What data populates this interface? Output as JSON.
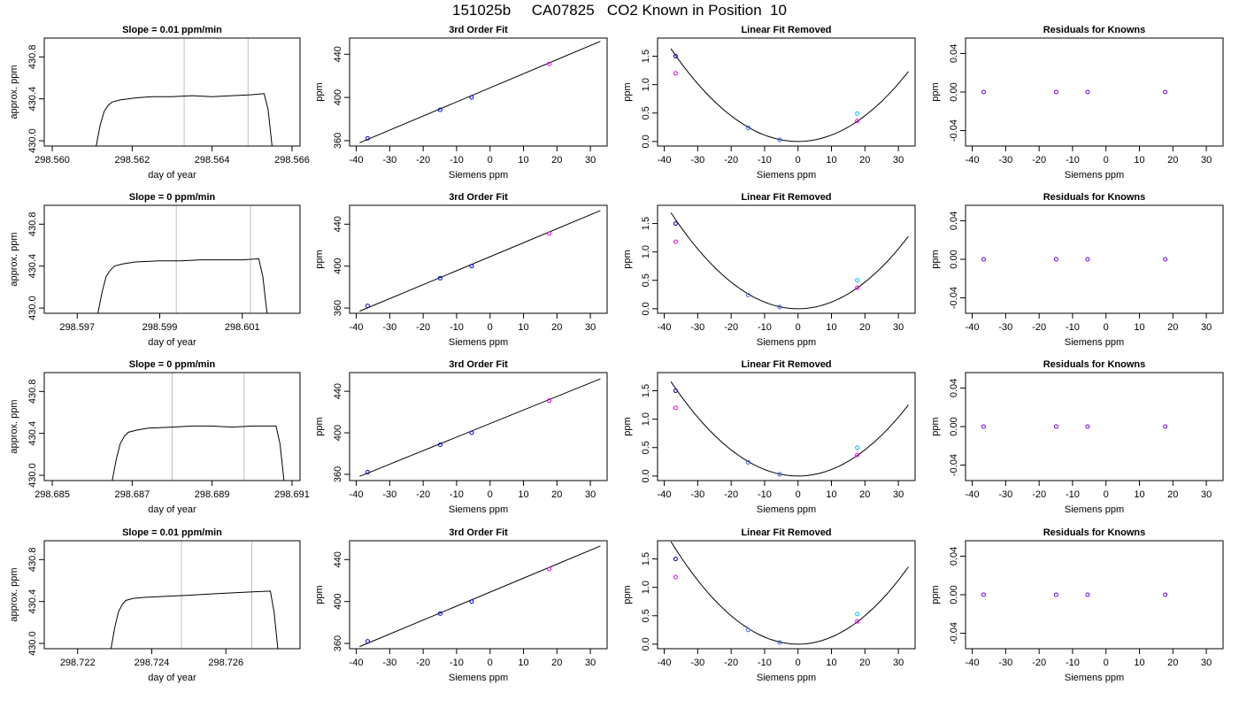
{
  "page_title": "151025b     CA07825   CO2 Known in Position  10",
  "chart_data": [
    {
      "type": "line",
      "title": "Slope =  0.01  ppm/min",
      "xlabel": "day of year",
      "ylabel": "approx. ppm",
      "xlim": [
        298.5598,
        298.5662
      ],
      "ylim": [
        429.95,
        430.98
      ],
      "xticks": [
        298.56,
        298.562,
        298.564,
        298.566
      ],
      "xtick_labels": [
        "298.560",
        "298.562",
        "298.564",
        "298.566"
      ],
      "yticks": [
        430.0,
        430.4,
        430.8
      ],
      "ytick_labels": [
        "430.0",
        "430.4",
        "430.8"
      ],
      "vlines": [
        298.5633,
        298.5649
      ],
      "series": [
        {
          "x": [
            298.5611,
            298.5612,
            298.5613,
            298.5614,
            298.5615,
            298.5617,
            298.5619,
            298.5621,
            298.5625,
            298.563,
            298.5635,
            298.564,
            298.5645,
            298.565,
            298.5653,
            298.5654,
            298.5655
          ],
          "y": [
            429.95,
            430.15,
            430.28,
            430.34,
            430.37,
            430.39,
            430.4,
            430.41,
            430.42,
            430.42,
            430.43,
            430.42,
            430.43,
            430.44,
            430.45,
            430.3,
            429.95
          ]
        }
      ]
    },
    {
      "type": "scatter",
      "title": "3rd Order Fit",
      "xlabel": "Siemens ppm",
      "ylabel": "ppm",
      "xlim": [
        -42,
        35
      ],
      "ylim": [
        355,
        455
      ],
      "xticks": [
        -40,
        -30,
        -20,
        -10,
        0,
        10,
        20,
        30
      ],
      "xtick_labels": [
        "-40",
        "-30",
        "-20",
        "-10",
        "0",
        "10",
        "20",
        "30"
      ],
      "yticks": [
        360,
        400,
        440
      ],
      "ytick_labels": [
        "360",
        "400",
        "440"
      ],
      "fit_line": [
        [
          -39,
          358
        ],
        [
          33,
          452
        ]
      ],
      "points": [
        {
          "x": -36.6,
          "y": 362.1
        },
        {
          "x": -14.9,
          "y": 388.5
        },
        {
          "x": -5.5,
          "y": 400.0
        },
        {
          "x": 17.7,
          "y": 431.0
        }
      ]
    },
    {
      "type": "scatter",
      "title": "Linear Fit Removed",
      "xlabel": "Siemens ppm",
      "ylabel": "ppm",
      "xlim": [
        -42,
        35
      ],
      "ylim": [
        -0.08,
        1.82
      ],
      "xticks": [
        -40,
        -30,
        -20,
        -10,
        0,
        10,
        20,
        30
      ],
      "xtick_labels": [
        "-40",
        "-30",
        "-20",
        "-10",
        "0",
        "10",
        "20",
        "30"
      ],
      "yticks": [
        0.0,
        0.5,
        1.0,
        1.5
      ],
      "ytick_labels": [
        "0.0",
        "0.5",
        "1.0",
        "1.5"
      ],
      "curve_coeffs": [
        0,
        0,
        0.00113
      ],
      "points": [
        {
          "x": -36.6,
          "y": 1.5
        },
        {
          "x": -36.6,
          "y": 1.2
        },
        {
          "x": -14.9,
          "y": 0.24
        },
        {
          "x": -5.5,
          "y": 0.03
        },
        {
          "x": 17.7,
          "y": 0.49
        },
        {
          "x": 17.7,
          "y": 0.36
        }
      ]
    },
    {
      "type": "scatter",
      "title": "Residuals for Knowns",
      "xlabel": "Siemens ppm",
      "ylabel": "ppm",
      "xlim": [
        -42,
        35
      ],
      "ylim": [
        -0.056,
        0.056
      ],
      "xticks": [
        -40,
        -30,
        -20,
        -10,
        0,
        10,
        20,
        30
      ],
      "xtick_labels": [
        "-40",
        "-30",
        "-20",
        "-10",
        "0",
        "10",
        "20",
        "30"
      ],
      "yticks": [
        -0.04,
        0.0,
        0.04
      ],
      "ytick_labels": [
        "-0.04",
        "0.00",
        "0.04"
      ],
      "points": [
        {
          "x": -36.6,
          "y": 0
        },
        {
          "x": -14.9,
          "y": 0
        },
        {
          "x": -5.5,
          "y": 0
        },
        {
          "x": 17.7,
          "y": 0
        }
      ]
    },
    {
      "type": "line",
      "title": "Slope =  0  ppm/min",
      "xlabel": "day of year",
      "ylabel": "approx. ppm",
      "xlim": [
        298.5962,
        298.6024
      ],
      "ylim": [
        429.95,
        430.98
      ],
      "xticks": [
        298.597,
        298.599,
        298.601
      ],
      "xtick_labels": [
        "298.597",
        "298.599",
        "298.601"
      ],
      "vlines": [
        298.5994,
        298.6012
      ],
      "yticks": [
        430.0,
        430.4,
        430.8
      ],
      "ytick_labels": [
        "430.0",
        "430.4",
        "430.8"
      ],
      "series": [
        {
          "x": [
            298.5975,
            298.5976,
            298.5977,
            298.5978,
            298.5979,
            298.5981,
            298.5984,
            298.599,
            298.5995,
            298.6,
            298.6005,
            298.601,
            298.6014,
            298.6015,
            298.6016
          ],
          "y": [
            429.95,
            430.15,
            430.3,
            430.36,
            430.4,
            430.42,
            430.44,
            430.45,
            430.45,
            430.46,
            430.46,
            430.46,
            430.47,
            430.3,
            429.95
          ]
        }
      ]
    },
    {
      "type": "scatter",
      "title": "3rd Order Fit",
      "xlabel": "Siemens ppm",
      "ylabel": "ppm",
      "xlim": [
        -42,
        35
      ],
      "ylim": [
        355,
        458
      ],
      "xticks": [
        -40,
        -30,
        -20,
        -10,
        0,
        10,
        20,
        30
      ],
      "xtick_labels": [
        "-40",
        "-30",
        "-20",
        "-10",
        "0",
        "10",
        "20",
        "30"
      ],
      "yticks": [
        360,
        400,
        440
      ],
      "ytick_labels": [
        "360",
        "400",
        "440"
      ],
      "fit_line": [
        [
          -39,
          357
        ],
        [
          33,
          453
        ]
      ],
      "points": [
        {
          "x": -36.6,
          "y": 362.1
        },
        {
          "x": -14.9,
          "y": 388.5
        },
        {
          "x": -5.5,
          "y": 400.0
        },
        {
          "x": 17.7,
          "y": 431.0
        }
      ]
    },
    {
      "type": "scatter",
      "title": "Linear Fit Removed",
      "xlabel": "Siemens ppm",
      "ylabel": "ppm",
      "xlim": [
        -42,
        35
      ],
      "ylim": [
        -0.08,
        1.82
      ],
      "xticks": [
        -40,
        -30,
        -20,
        -10,
        0,
        10,
        20,
        30
      ],
      "xtick_labels": [
        "-40",
        "-30",
        "-20",
        "-10",
        "0",
        "10",
        "20",
        "30"
      ],
      "yticks": [
        0.0,
        0.5,
        1.0,
        1.5
      ],
      "ytick_labels": [
        "0.0",
        "0.5",
        "1.0",
        "1.5"
      ],
      "curve_coeffs": [
        0,
        0,
        0.00117
      ],
      "points": [
        {
          "x": -36.6,
          "y": 1.5
        },
        {
          "x": -36.6,
          "y": 1.18
        },
        {
          "x": -14.9,
          "y": 0.24
        },
        {
          "x": -5.5,
          "y": 0.03
        },
        {
          "x": 17.7,
          "y": 0.5
        },
        {
          "x": 17.7,
          "y": 0.37
        }
      ]
    },
    {
      "type": "scatter",
      "title": "Residuals for Knowns",
      "xlabel": "Siemens ppm",
      "ylabel": "ppm",
      "xlim": [
        -42,
        35
      ],
      "ylim": [
        -0.056,
        0.056
      ],
      "xticks": [
        -40,
        -30,
        -20,
        -10,
        0,
        10,
        20,
        30
      ],
      "xtick_labels": [
        "-40",
        "-30",
        "-20",
        "-10",
        "0",
        "10",
        "20",
        "30"
      ],
      "yticks": [
        -0.04,
        0.0,
        0.04
      ],
      "ytick_labels": [
        "-0.04",
        "0.00",
        "0.04"
      ],
      "points": [
        {
          "x": -36.6,
          "y": 0
        },
        {
          "x": -14.9,
          "y": 0
        },
        {
          "x": -5.5,
          "y": 0
        },
        {
          "x": 17.7,
          "y": 0
        }
      ]
    },
    {
      "type": "line",
      "title": "Slope =  0  ppm/min",
      "xlabel": "day of year",
      "ylabel": "approx. ppm",
      "xlim": [
        298.6848,
        298.6912
      ],
      "ylim": [
        429.95,
        430.98
      ],
      "xticks": [
        298.685,
        298.687,
        298.689,
        298.691
      ],
      "xtick_labels": [
        "298.685",
        "298.687",
        "298.689",
        "298.691"
      ],
      "vlines": [
        298.688,
        298.6898
      ],
      "yticks": [
        430.0,
        430.4,
        430.8
      ],
      "ytick_labels": [
        "430.0",
        "430.4",
        "430.8"
      ],
      "series": [
        {
          "x": [
            298.6865,
            298.6866,
            298.6867,
            298.6868,
            298.6869,
            298.6871,
            298.6874,
            298.688,
            298.6885,
            298.689,
            298.6895,
            298.69,
            298.6906,
            298.6907,
            298.6908
          ],
          "y": [
            429.95,
            430.15,
            430.3,
            430.37,
            430.41,
            430.43,
            430.45,
            430.46,
            430.47,
            430.47,
            430.46,
            430.47,
            430.47,
            430.3,
            429.95
          ]
        }
      ]
    },
    {
      "type": "scatter",
      "title": "3rd Order Fit",
      "xlabel": "Siemens ppm",
      "ylabel": "ppm",
      "xlim": [
        -42,
        35
      ],
      "ylim": [
        354,
        458
      ],
      "xticks": [
        -40,
        -30,
        -20,
        -10,
        0,
        10,
        20,
        30
      ],
      "xtick_labels": [
        "-40",
        "-30",
        "-20",
        "-10",
        "0",
        "10",
        "20",
        "30"
      ],
      "yticks": [
        360,
        400,
        440
      ],
      "ytick_labels": [
        "360",
        "400",
        "440"
      ],
      "fit_line": [
        [
          -39,
          358
        ],
        [
          33,
          452
        ]
      ],
      "points": [
        {
          "x": -36.6,
          "y": 362.1
        },
        {
          "x": -14.9,
          "y": 388.5
        },
        {
          "x": -5.5,
          "y": 400.0
        },
        {
          "x": 17.7,
          "y": 431.0
        }
      ]
    },
    {
      "type": "scatter",
      "title": "Linear Fit Removed",
      "xlabel": "Siemens ppm",
      "ylabel": "ppm",
      "xlim": [
        -42,
        35
      ],
      "ylim": [
        -0.08,
        1.82
      ],
      "xticks": [
        -40,
        -30,
        -20,
        -10,
        0,
        10,
        20,
        30
      ],
      "xtick_labels": [
        "-40",
        "-30",
        "-20",
        "-10",
        "0",
        "10",
        "20",
        "30"
      ],
      "yticks": [
        0.0,
        0.5,
        1.0,
        1.5
      ],
      "ytick_labels": [
        "0.0",
        "0.5",
        "1.0",
        "1.5"
      ],
      "curve_coeffs": [
        0,
        0,
        0.00115
      ],
      "points": [
        {
          "x": -36.6,
          "y": 1.5
        },
        {
          "x": -36.6,
          "y": 1.2
        },
        {
          "x": -14.9,
          "y": 0.24
        },
        {
          "x": -5.5,
          "y": 0.03
        },
        {
          "x": 17.7,
          "y": 0.5
        },
        {
          "x": 17.7,
          "y": 0.37
        }
      ]
    },
    {
      "type": "scatter",
      "title": "Residuals for Knowns",
      "xlabel": "Siemens ppm",
      "ylabel": "ppm",
      "xlim": [
        -42,
        35
      ],
      "ylim": [
        -0.056,
        0.056
      ],
      "xticks": [
        -40,
        -30,
        -20,
        -10,
        0,
        10,
        20,
        30
      ],
      "xtick_labels": [
        "-40",
        "-30",
        "-20",
        "-10",
        "0",
        "10",
        "20",
        "30"
      ],
      "yticks": [
        -0.04,
        0.0,
        0.04
      ],
      "ytick_labels": [
        "-0.04",
        "0.00",
        "0.04"
      ],
      "points": [
        {
          "x": -36.6,
          "y": 0
        },
        {
          "x": -14.9,
          "y": 0
        },
        {
          "x": -5.5,
          "y": 0
        },
        {
          "x": 17.7,
          "y": 0
        }
      ]
    },
    {
      "type": "line",
      "title": "Slope =  0.01  ppm/min",
      "xlabel": "day of year",
      "ylabel": "approx. ppm",
      "xlim": [
        298.7211,
        298.728
      ],
      "ylim": [
        429.95,
        430.98
      ],
      "xticks": [
        298.722,
        298.724,
        298.726
      ],
      "xtick_labels": [
        "298.722",
        "298.724",
        "298.726"
      ],
      "vlines": [
        298.7248,
        298.7267
      ],
      "yticks": [
        430.0,
        430.4,
        430.8
      ],
      "ytick_labels": [
        "430.0",
        "430.4",
        "430.8"
      ],
      "series": [
        {
          "x": [
            298.7229,
            298.723,
            298.7231,
            298.7232,
            298.7233,
            298.7235,
            298.7238,
            298.7244,
            298.725,
            298.7255,
            298.726,
            298.7266,
            298.7272,
            298.7273,
            298.7274
          ],
          "y": [
            429.95,
            430.15,
            430.3,
            430.37,
            430.41,
            430.43,
            430.44,
            430.45,
            430.46,
            430.47,
            430.48,
            430.49,
            430.5,
            430.3,
            429.95
          ]
        }
      ]
    },
    {
      "type": "scatter",
      "title": "3rd Order Fit",
      "xlabel": "Siemens ppm",
      "ylabel": "ppm",
      "xlim": [
        -42,
        35
      ],
      "ylim": [
        355,
        458
      ],
      "xticks": [
        -40,
        -30,
        -20,
        -10,
        0,
        10,
        20,
        30
      ],
      "xtick_labels": [
        "-40",
        "-30",
        "-20",
        "-10",
        "0",
        "10",
        "20",
        "30"
      ],
      "yticks": [
        360,
        400,
        440
      ],
      "ytick_labels": [
        "360",
        "400",
        "440"
      ],
      "fit_line": [
        [
          -39,
          357
        ],
        [
          33,
          453
        ]
      ],
      "points": [
        {
          "x": -36.6,
          "y": 362.1
        },
        {
          "x": -14.9,
          "y": 388.5
        },
        {
          "x": -5.5,
          "y": 400.0
        },
        {
          "x": 17.7,
          "y": 431.0
        }
      ]
    },
    {
      "type": "scatter",
      "title": "Linear Fit Removed",
      "xlabel": "Siemens ppm",
      "ylabel": "ppm",
      "xlim": [
        -42,
        35
      ],
      "ylim": [
        -0.08,
        1.82
      ],
      "xticks": [
        -40,
        -30,
        -20,
        -10,
        0,
        10,
        20,
        30
      ],
      "xtick_labels": [
        "-40",
        "-30",
        "-20",
        "-10",
        "0",
        "10",
        "20",
        "30"
      ],
      "yticks": [
        0.0,
        0.5,
        1.0,
        1.5
      ],
      "ytick_labels": [
        "0.0",
        "0.5",
        "1.0",
        "1.5"
      ],
      "curve_coeffs": [
        0,
        0,
        0.00125
      ],
      "points": [
        {
          "x": -36.6,
          "y": 1.5
        },
        {
          "x": -36.6,
          "y": 1.18
        },
        {
          "x": -14.9,
          "y": 0.25
        },
        {
          "x": -5.5,
          "y": 0.03
        },
        {
          "x": 17.7,
          "y": 0.53
        },
        {
          "x": 17.7,
          "y": 0.4
        }
      ]
    },
    {
      "type": "scatter",
      "title": "Residuals for Knowns",
      "xlabel": "Siemens ppm",
      "ylabel": "ppm",
      "xlim": [
        -42,
        35
      ],
      "ylim": [
        -0.056,
        0.056
      ],
      "xticks": [
        -40,
        -30,
        -20,
        -10,
        0,
        10,
        20,
        30
      ],
      "xtick_labels": [
        "-40",
        "-30",
        "-20",
        "-10",
        "0",
        "10",
        "20",
        "30"
      ],
      "yticks": [
        -0.04,
        0.0,
        0.04
      ],
      "ytick_labels": [
        "-0.04",
        "0.00",
        "0.04"
      ],
      "points": [
        {
          "x": -36.6,
          "y": 0
        },
        {
          "x": -14.9,
          "y": 0
        },
        {
          "x": -5.5,
          "y": 0
        },
        {
          "x": 17.7,
          "y": 0
        }
      ]
    }
  ],
  "colors": {
    "axis": "#000000",
    "line": "#000000",
    "vline": "#bebebe",
    "point_dark": "#0000cd",
    "point_mid": "#4169e1",
    "point_magenta": "#ee00ee",
    "point_cyan": "#00bfff"
  }
}
